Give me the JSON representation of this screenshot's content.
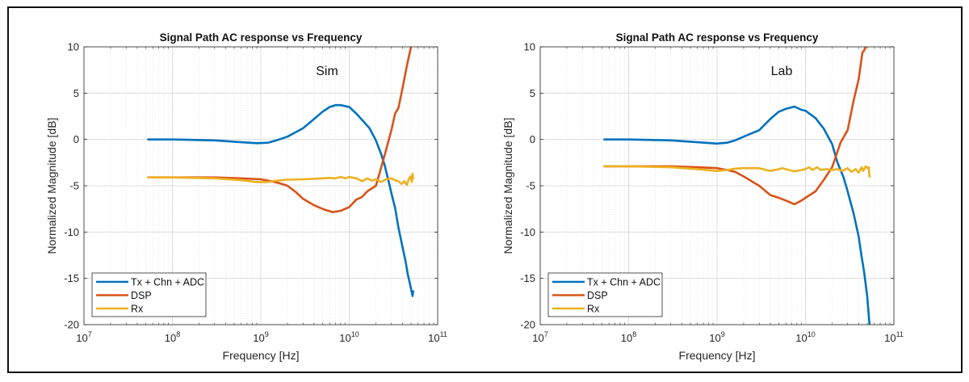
{
  "colors": {
    "series1": "#0072BD",
    "series2": "#D95319",
    "series3": "#EDB120",
    "grid": "#dcdcdc",
    "axis": "#262626"
  },
  "chart_data": [
    {
      "type": "line",
      "title": "Signal Path AC response vs Frequency",
      "annotation": "Sim",
      "xlabel": "Frequency [Hz]",
      "ylabel": "Normalized Magnitude [dB]",
      "xscale": "log",
      "xlim": [
        10000000.0,
        100000000000.0
      ],
      "ylim": [
        -20,
        10
      ],
      "xticks": [
        10000000.0,
        100000000.0,
        1000000000.0,
        10000000000.0,
        100000000000.0
      ],
      "xtick_labels": [
        {
          "base": "10",
          "exp": "7"
        },
        {
          "base": "10",
          "exp": "8"
        },
        {
          "base": "10",
          "exp": "9"
        },
        {
          "base": "10",
          "exp": "10"
        },
        {
          "base": "10",
          "exp": "11"
        }
      ],
      "yticks": [
        -20,
        -15,
        -10,
        -5,
        0,
        5,
        10
      ],
      "ytick_labels": [
        "-20",
        "-15",
        "-10",
        "-5",
        "0",
        "5",
        "10"
      ],
      "grid": true,
      "legend_position": "bottom-left",
      "series": [
        {
          "name": "Tx + Chn + ADC",
          "x": [
            52000000.0,
            100000000.0,
            300000000.0,
            600000000.0,
            900000000.0,
            1200000000.0,
            1500000000.0,
            2000000000.0,
            3000000000.0,
            4000000000.0,
            5000000000.0,
            6000000000.0,
            7000000000.0,
            8000000000.0,
            10000000000.0,
            12000000000.0,
            14000000000.0,
            17000000000.0,
            20000000000.0,
            23000000000.0,
            25000000000.0,
            28000000000.0,
            30000000000.0,
            33000000000.0,
            36000000000.0,
            40000000000.0,
            43000000000.0,
            46000000000.0,
            50000000000.0,
            52000000000.0,
            53000000000.0
          ],
          "y": [
            0,
            0,
            -0.1,
            -0.3,
            -0.4,
            -0.35,
            -0.1,
            0.3,
            1.2,
            2.2,
            3.0,
            3.5,
            3.7,
            3.7,
            3.5,
            2.8,
            2.1,
            1.2,
            -0.1,
            -1.6,
            -2.7,
            -4.6,
            -5.8,
            -7.4,
            -9.5,
            -11.6,
            -13,
            -14.6,
            -16.1,
            -16.9,
            -16.3
          ]
        },
        {
          "name": "DSP",
          "x": [
            52000000.0,
            100000000.0,
            300000000.0,
            600000000.0,
            1000000000.0,
            1300000000.0,
            1600000000.0,
            2000000000.0,
            2500000000.0,
            3000000000.0,
            4000000000.0,
            5000000000.0,
            6500000000.0,
            8000000000.0,
            10000000000.0,
            12000000000.0,
            14000000000.0,
            16000000000.0,
            20000000000.0,
            23000000000.0,
            26000000000.0,
            30000000000.0,
            33000000000.0,
            36000000000.0,
            40000000000.0,
            45000000000.0,
            50000000000.0
          ],
          "y": [
            -4.1,
            -4.1,
            -4.1,
            -4.2,
            -4.3,
            -4.5,
            -4.7,
            -5.0,
            -5.7,
            -6.4,
            -7.1,
            -7.5,
            -7.85,
            -7.7,
            -7.3,
            -6.5,
            -6.2,
            -5.6,
            -5.0,
            -3.0,
            -1.2,
            1.0,
            2.8,
            3.4,
            5.5,
            8.0,
            10
          ]
        },
        {
          "name": "Rx",
          "x": [
            52000000.0,
            100000000.0,
            300000000.0,
            600000000.0,
            900000000.0,
            1200000000.0,
            1500000000.0,
            2000000000.0,
            3000000000.0,
            4000000000.0,
            5000000000.0,
            6000000000.0,
            7000000000.0,
            8000000000.0,
            9000000000.0,
            10000000000.0,
            12000000000.0,
            14000000000.0,
            16000000000.0,
            18000000000.0,
            20000000000.0,
            23000000000.0,
            26000000000.0,
            30000000000.0,
            33000000000.0,
            36000000000.0,
            39000000000.0,
            42000000000.0,
            45000000000.0,
            47000000000.0,
            49000000000.0,
            51000000000.0,
            52000000000.0,
            53000000000.0
          ],
          "y": [
            -4.1,
            -4.1,
            -4.2,
            -4.4,
            -4.6,
            -4.6,
            -4.45,
            -4.35,
            -4.3,
            -4.25,
            -4.2,
            -4.15,
            -4.2,
            -4.05,
            -4.2,
            -4.05,
            -4.2,
            -4.5,
            -4.2,
            -4.45,
            -4.3,
            -4.6,
            -4.3,
            -4.2,
            -4.4,
            -4.5,
            -4.8,
            -4.5,
            -4.9,
            -4.3,
            -4.0,
            -4.6,
            -3.7,
            -4.3
          ]
        }
      ]
    },
    {
      "type": "line",
      "title": "Signal Path AC response vs Frequency",
      "annotation": "Lab",
      "xlabel": "Frequency [Hz]",
      "ylabel": "Normalized Magnitude [dB]",
      "xscale": "log",
      "xlim": [
        10000000.0,
        100000000000.0
      ],
      "ylim": [
        -20,
        10
      ],
      "xticks": [
        10000000.0,
        100000000.0,
        1000000000.0,
        10000000000.0,
        100000000000.0
      ],
      "xtick_labels": [
        {
          "base": "10",
          "exp": "7"
        },
        {
          "base": "10",
          "exp": "8"
        },
        {
          "base": "10",
          "exp": "9"
        },
        {
          "base": "10",
          "exp": "10"
        },
        {
          "base": "10",
          "exp": "11"
        }
      ],
      "yticks": [
        -20,
        -15,
        -10,
        -5,
        0,
        5,
        10
      ],
      "ytick_labels": [
        "-20",
        "-15",
        "-10",
        "-5",
        "0",
        "5",
        "10"
      ],
      "grid": true,
      "legend_position": "bottom-left",
      "series": [
        {
          "name": "Tx + Chn + ADC",
          "x": [
            52000000.0,
            100000000.0,
            300000000.0,
            600000000.0,
            1000000000.0,
            1300000000.0,
            1600000000.0,
            2000000000.0,
            3000000000.0,
            4000000000.0,
            5000000000.0,
            6000000000.0,
            7500000000.0,
            9000000000.0,
            10000000000.0,
            13000000000.0,
            16000000000.0,
            20000000000.0,
            23000000000.0,
            27000000000.0,
            30000000000.0,
            35000000000.0,
            40000000000.0,
            43000000000.0,
            46000000000.0,
            50000000000.0,
            53000000000.0
          ],
          "y": [
            0,
            0,
            -0.1,
            -0.3,
            -0.45,
            -0.35,
            -0.1,
            0.3,
            1.0,
            2.2,
            3.0,
            3.3,
            3.55,
            3.2,
            3.1,
            2.3,
            1.2,
            -0.5,
            -2.5,
            -4.1,
            -5.6,
            -8.0,
            -10.5,
            -12.6,
            -14.3,
            -17,
            -20
          ]
        },
        {
          "name": "DSP",
          "x": [
            52000000.0,
            100000000.0,
            300000000.0,
            600000000.0,
            1000000000.0,
            1300000000.0,
            1600000000.0,
            2000000000.0,
            3000000000.0,
            4000000000.0,
            5000000000.0,
            6000000000.0,
            7500000000.0,
            9000000000.0,
            10000000000.0,
            13000000000.0,
            16000000000.0,
            20000000000.0,
            25000000000.0,
            30000000000.0,
            35000000000.0,
            40000000000.0,
            44000000000.0,
            46000000000.0,
            48000000000.0
          ],
          "y": [
            -2.9,
            -2.9,
            -2.9,
            -3.0,
            -3.1,
            -3.3,
            -3.5,
            -4.0,
            -5.0,
            -6.0,
            -6.3,
            -6.6,
            -7.0,
            -6.6,
            -6.3,
            -5.6,
            -4.4,
            -3.0,
            -0.3,
            1.0,
            4.2,
            6.5,
            9.4,
            9.6,
            10
          ]
        },
        {
          "name": "Rx",
          "x": [
            52000000.0,
            100000000.0,
            300000000.0,
            600000000.0,
            1000000000.0,
            1300000000.0,
            1600000000.0,
            2000000000.0,
            3000000000.0,
            4000000000.0,
            5000000000.0,
            5500000000.0,
            6500000000.0,
            7500000000.0,
            9000000000.0,
            10000000000.0,
            11000000000.0,
            12000000000.0,
            13500000000.0,
            15000000000.0,
            17000000000.0,
            20000000000.0,
            23000000000.0,
            26000000000.0,
            30000000000.0,
            33000000000.0,
            37000000000.0,
            40000000000.0,
            43000000000.0,
            45000000000.0,
            48000000000.0,
            50000000000.0,
            52000000000.0,
            53000000000.0
          ],
          "y": [
            -2.9,
            -2.9,
            -3.0,
            -3.2,
            -3.4,
            -3.3,
            -3.15,
            -3.1,
            -3.1,
            -3.4,
            -3.2,
            -3.1,
            -3.3,
            -3.45,
            -3.3,
            -3.2,
            -3.0,
            -3.3,
            -3.0,
            -3.3,
            -3.2,
            -3.3,
            -3.2,
            -3.4,
            -3.1,
            -3.5,
            -3.2,
            -3.6,
            -3.0,
            -3.4,
            -2.9,
            -3.1,
            -3.0,
            -4.1
          ]
        }
      ]
    }
  ]
}
